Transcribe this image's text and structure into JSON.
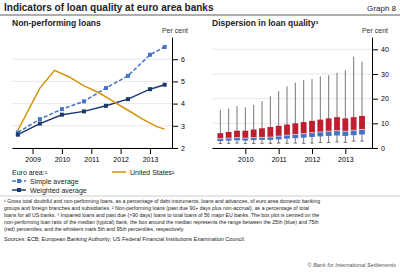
{
  "title": "Indicators of loan quality at euro area banks",
  "annotations": [
    "Graph 8",
    "¹ Gross total doubtful and non-performing loans, as a percentage of debt instruments, loans and advances, of euro area domestic banking",
    "groups and foreign branches and subsidiaries.  ² Non-performing loans (past due 90+ days plus non-accrual), as a percentage of total",
    "loans for all US banks.  ³ Impaired loans and past due (>90 days) loans to total loans of 56 major EU banks. The box plot is centred on the",
    "non-performing loan ratio of the median (typical) bank, the box around the median represents the range between the 25th (blue) and 75th",
    "(red) percentiles, and the whiskers mark 5th and 95th percentiles, respectively.",
    "Sources: ECB; European Banking Authority; US Federal Financial Institutions Examination Council.",
    "© Bank for International Settlements"
  ],
  "chart_data": [
    {
      "type": "line",
      "title": "Non-performing loans",
      "ylabel": "Per cent",
      "annotations": [
        "Euro area:¹"
      ],
      "series": [
        {
          "name": "Simple average",
          "color": "#4472c4",
          "line_style": "dashed",
          "marker": "square",
          "x": [
            2008.5,
            2009.25,
            2010.0,
            2010.75,
            2011.5,
            2012.25,
            2013.0,
            2013.5
          ],
          "values": [
            2.7,
            3.3,
            3.75,
            4.1,
            4.7,
            5.25,
            6.2,
            6.55
          ]
        },
        {
          "name": "Weighted average",
          "color": "#1a3a6e",
          "line_style": "solid",
          "marker": "square",
          "x": [
            2008.5,
            2009.25,
            2010.0,
            2010.75,
            2011.5,
            2012.25,
            2013.0,
            2013.5
          ],
          "values": [
            2.6,
            3.1,
            3.5,
            3.65,
            3.9,
            4.2,
            4.65,
            4.85
          ]
        },
        {
          "name": "United States²",
          "color": "#d4920a",
          "line_style": "solid",
          "marker": "none",
          "x": [
            2008.5,
            2009.25,
            2009.75,
            2010.25,
            2010.75,
            2011.25,
            2011.75,
            2012.25,
            2012.75,
            2013.25,
            2013.5
          ],
          "values": [
            2.8,
            4.7,
            5.5,
            5.2,
            4.8,
            4.5,
            4.1,
            3.7,
            3.3,
            2.95,
            2.85
          ]
        }
      ],
      "xlim": [
        2008.3,
        2013.75
      ],
      "xticks": [
        2009,
        2010,
        2011,
        2012,
        2013
      ],
      "ylim": [
        2,
        7
      ],
      "yticks": [
        2,
        3,
        4,
        5,
        6
      ],
      "grid": true,
      "legend": "bottom"
    },
    {
      "type": "box",
      "title": "Dispersion in loan quality³",
      "ylabel": "Per cent",
      "x": [
        2009.25,
        2009.5,
        2009.75,
        2010.0,
        2010.25,
        2010.5,
        2010.75,
        2011.0,
        2011.25,
        2011.5,
        2011.75,
        2012.0,
        2012.25,
        2012.5,
        2012.75,
        2013.0,
        2013.25,
        2013.5
      ],
      "p5": [
        1.8,
        1.9,
        2.0,
        1.8,
        1.8,
        1.9,
        1.9,
        2.0,
        1.9,
        2.0,
        1.9,
        2.0,
        2.2,
        2.2,
        2.5,
        2.3,
        2.8,
        2.8
      ],
      "p25": [
        2.8,
        3.0,
        3.1,
        3.0,
        3.2,
        3.3,
        3.3,
        3.5,
        3.8,
        4.0,
        4.2,
        4.5,
        4.7,
        4.9,
        5.1,
        4.9,
        5.2,
        5.5
      ],
      "median": [
        3.8,
        4.0,
        4.2,
        4.0,
        4.2,
        4.3,
        4.4,
        4.8,
        5.2,
        5.5,
        5.8,
        6.2,
        6.5,
        6.8,
        7.0,
        6.8,
        7.2,
        7.5
      ],
      "p75": [
        6.0,
        6.5,
        7.0,
        7.0,
        7.5,
        8.0,
        8.5,
        9.0,
        9.5,
        10.0,
        10.5,
        11.0,
        11.5,
        12.0,
        12.5,
        12.0,
        12.5,
        13.0
      ],
      "p95": [
        15.5,
        16.0,
        17.0,
        16.5,
        17.5,
        19.0,
        21.0,
        23.0,
        25.0,
        26.5,
        27.5,
        28.0,
        29.0,
        29.5,
        30.5,
        31.5,
        37.0,
        35.0
      ],
      "colors": [
        "#4472c4",
        "#be1e2d"
      ],
      "xlim": [
        2009,
        2013.8
      ],
      "xticks": [
        2010,
        2011,
        2012,
        2013
      ],
      "ylim": [
        0,
        45
      ],
      "yticks": [
        0,
        10,
        20,
        30,
        40
      ],
      "grid": true
    }
  ]
}
